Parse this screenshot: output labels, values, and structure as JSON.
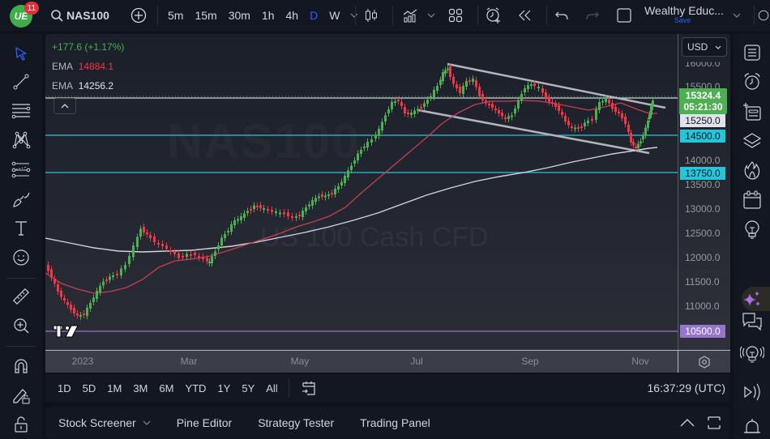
{
  "topbar": {
    "logo_text": "UE",
    "notification_count": "11",
    "symbol": "NAS100",
    "intervals": [
      {
        "label": "5m",
        "active": false
      },
      {
        "label": "15m",
        "active": false
      },
      {
        "label": "30m",
        "active": false
      },
      {
        "label": "1h",
        "active": false
      },
      {
        "label": "4h",
        "active": false
      },
      {
        "label": "D",
        "active": true
      },
      {
        "label": "W",
        "active": false
      }
    ],
    "layout_name": "Wealthy Educ...",
    "save_label": "Save"
  },
  "legend": {
    "change": "+177.6 (+1.17%)",
    "ema1_label": "EMA",
    "ema1_value": "14884.1",
    "ema2_label": "EMA",
    "ema2_value": "14256.2"
  },
  "watermark": {
    "symbol": "NAS100",
    "description": "US 100 Cash CFD"
  },
  "price_axis": {
    "currency": "USD",
    "ticks": [
      "16000.0",
      "15500.0",
      "14000.0",
      "13500.0",
      "13000.0",
      "12500.0",
      "12000.0",
      "11500.0",
      "11000.0"
    ],
    "current_price": "15324.4",
    "countdown": "05:21:30",
    "labels": [
      {
        "value": "15250.0",
        "color": "#e0e3eb",
        "text_color": "#131722"
      },
      {
        "value": "14500.0",
        "color": "#26c6da",
        "text_color": "#131722"
      },
      {
        "value": "13750.0",
        "color": "#26c6da",
        "text_color": "#131722"
      },
      {
        "value": "10500.0",
        "color": "#9575cd",
        "text_color": "#ffffff"
      }
    ]
  },
  "time_axis": {
    "ticks": [
      "2023",
      "Mar",
      "May",
      "Jul",
      "Sep",
      "Nov"
    ]
  },
  "range_bar": {
    "ranges": [
      "1D",
      "5D",
      "1M",
      "3M",
      "6M",
      "YTD",
      "1Y",
      "5Y",
      "All"
    ],
    "clock": "16:37:29 (UTC)"
  },
  "bottom_bar": {
    "tabs": [
      "Stock Screener",
      "Pine Editor",
      "Strategy Tester",
      "Trading Panel"
    ]
  },
  "colors": {
    "up": "#4caf50",
    "down": "#f23645",
    "ema_fast": "#c2404f",
    "ema_slow": "#d1d4dc",
    "support": "#26c6da",
    "accent": "#2962ff"
  }
}
